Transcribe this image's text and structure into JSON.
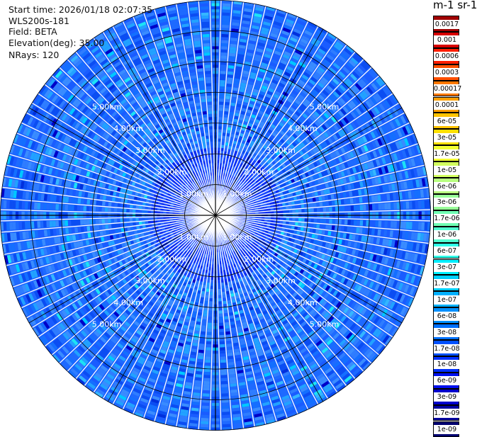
{
  "info": {
    "start_time": "Start time: 2026/01/18 02:07:35",
    "instrument": "WLS200s-181",
    "field": "Field: BETA",
    "elevation": "Elevation(deg): 35.00",
    "nrays": "NRays: 120"
  },
  "colorbar": {
    "title": "m-1 sr-1",
    "labels": [
      "0.0017",
      "0.001",
      "0.0006",
      "0.0003",
      "0.00017",
      "0.0001",
      "6e-05",
      "3e-05",
      "1.7e-05",
      "1e-05",
      "6e-06",
      "3e-06",
      "1.7e-06",
      "1e-06",
      "6e-07",
      "3e-07",
      "1.7e-07",
      "1e-07",
      "6e-08",
      "3e-08",
      "1.7e-08",
      "1e-08",
      "6e-09",
      "3e-09",
      "1.7e-09",
      "1e-09"
    ],
    "colors": [
      "#a00000",
      "#d80000",
      "#ff1e00",
      "#ff5000",
      "#ff7800",
      "#ffa000",
      "#ffc300",
      "#ffe000",
      "#f2ff33",
      "#d2ff5e",
      "#b8ff80",
      "#98ff98",
      "#70ffb4",
      "#50ffd0",
      "#30ffe8",
      "#00f0ff",
      "#00d0ff",
      "#00b0ff",
      "#0090ff",
      "#0070ff",
      "#0050ff",
      "#0030ff",
      "#0010ee",
      "#0000cc",
      "#00009e",
      "#000070"
    ]
  },
  "chart_data": {
    "type": "heatmap",
    "projection": "polar PPI",
    "n_rays": 120,
    "elevation_deg": 35.0,
    "field": "BETA",
    "range_rings_km": [
      1,
      2,
      3,
      4,
      5
    ],
    "ring_labels": [
      "1.00km",
      "2.00km",
      "3.00km",
      "4.00km",
      "5.00km"
    ],
    "max_range_km": 7,
    "value_range": [
      1e-09,
      0.0017
    ],
    "colorscale": "log, blue (low) to dark red (high)"
  }
}
